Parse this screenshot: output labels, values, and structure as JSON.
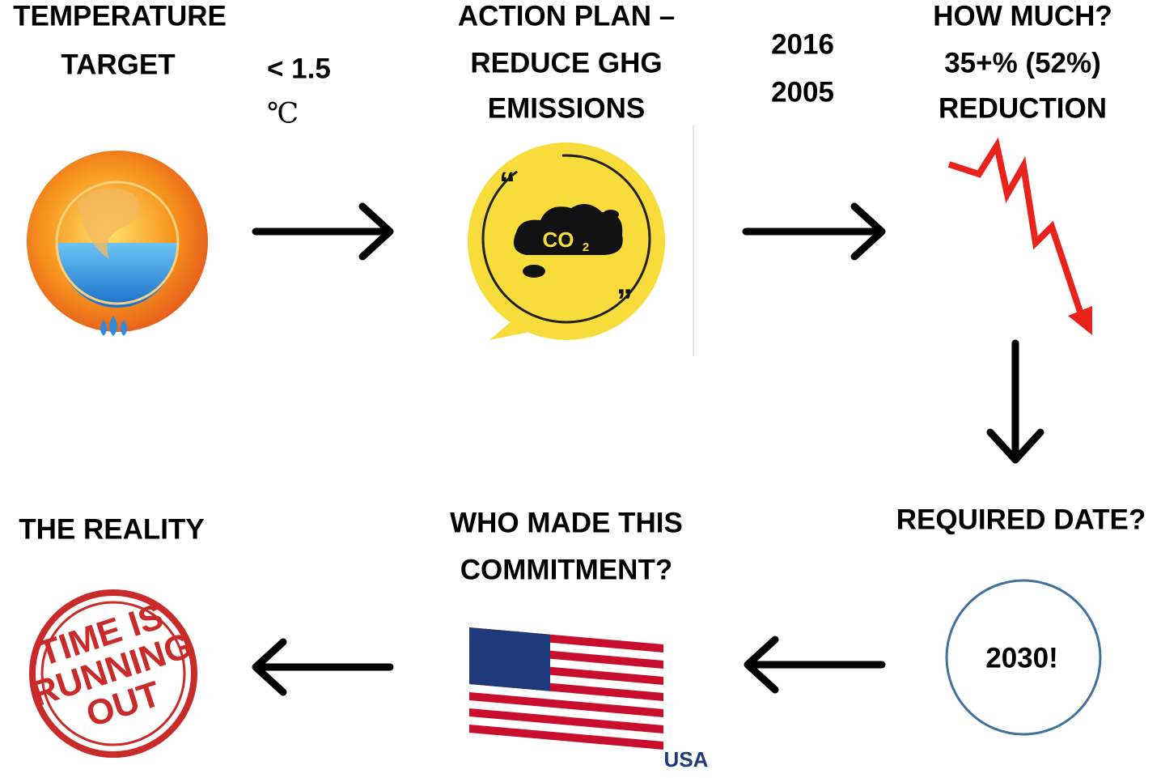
{
  "temperature_target": {
    "title": [
      "TEMPERATURE",
      "TARGET"
    ],
    "target": [
      "< 1.5",
      "℃"
    ]
  },
  "action_plan": {
    "title": [
      "ACTION PLAN –",
      "REDUCE GHG",
      "EMISSIONS"
    ],
    "years": [
      "2016",
      "2005"
    ],
    "icon": {
      "label": "CO",
      "subscript": "2",
      "quotes": [
        "“",
        "”"
      ]
    }
  },
  "how_much": {
    "title": [
      "HOW MUCH?",
      "35+% (52%)",
      "REDUCTION"
    ]
  },
  "required_date": {
    "title": "REQUIRED DATE?",
    "answer": "2030!"
  },
  "commitment": {
    "title": [
      "WHO MADE THIS",
      "COMMITMENT?"
    ],
    "flag_label": "USA"
  },
  "reality": {
    "title": "THE REALITY",
    "stamp": [
      "TIME IS",
      "RUNNING",
      "OUT"
    ]
  }
}
